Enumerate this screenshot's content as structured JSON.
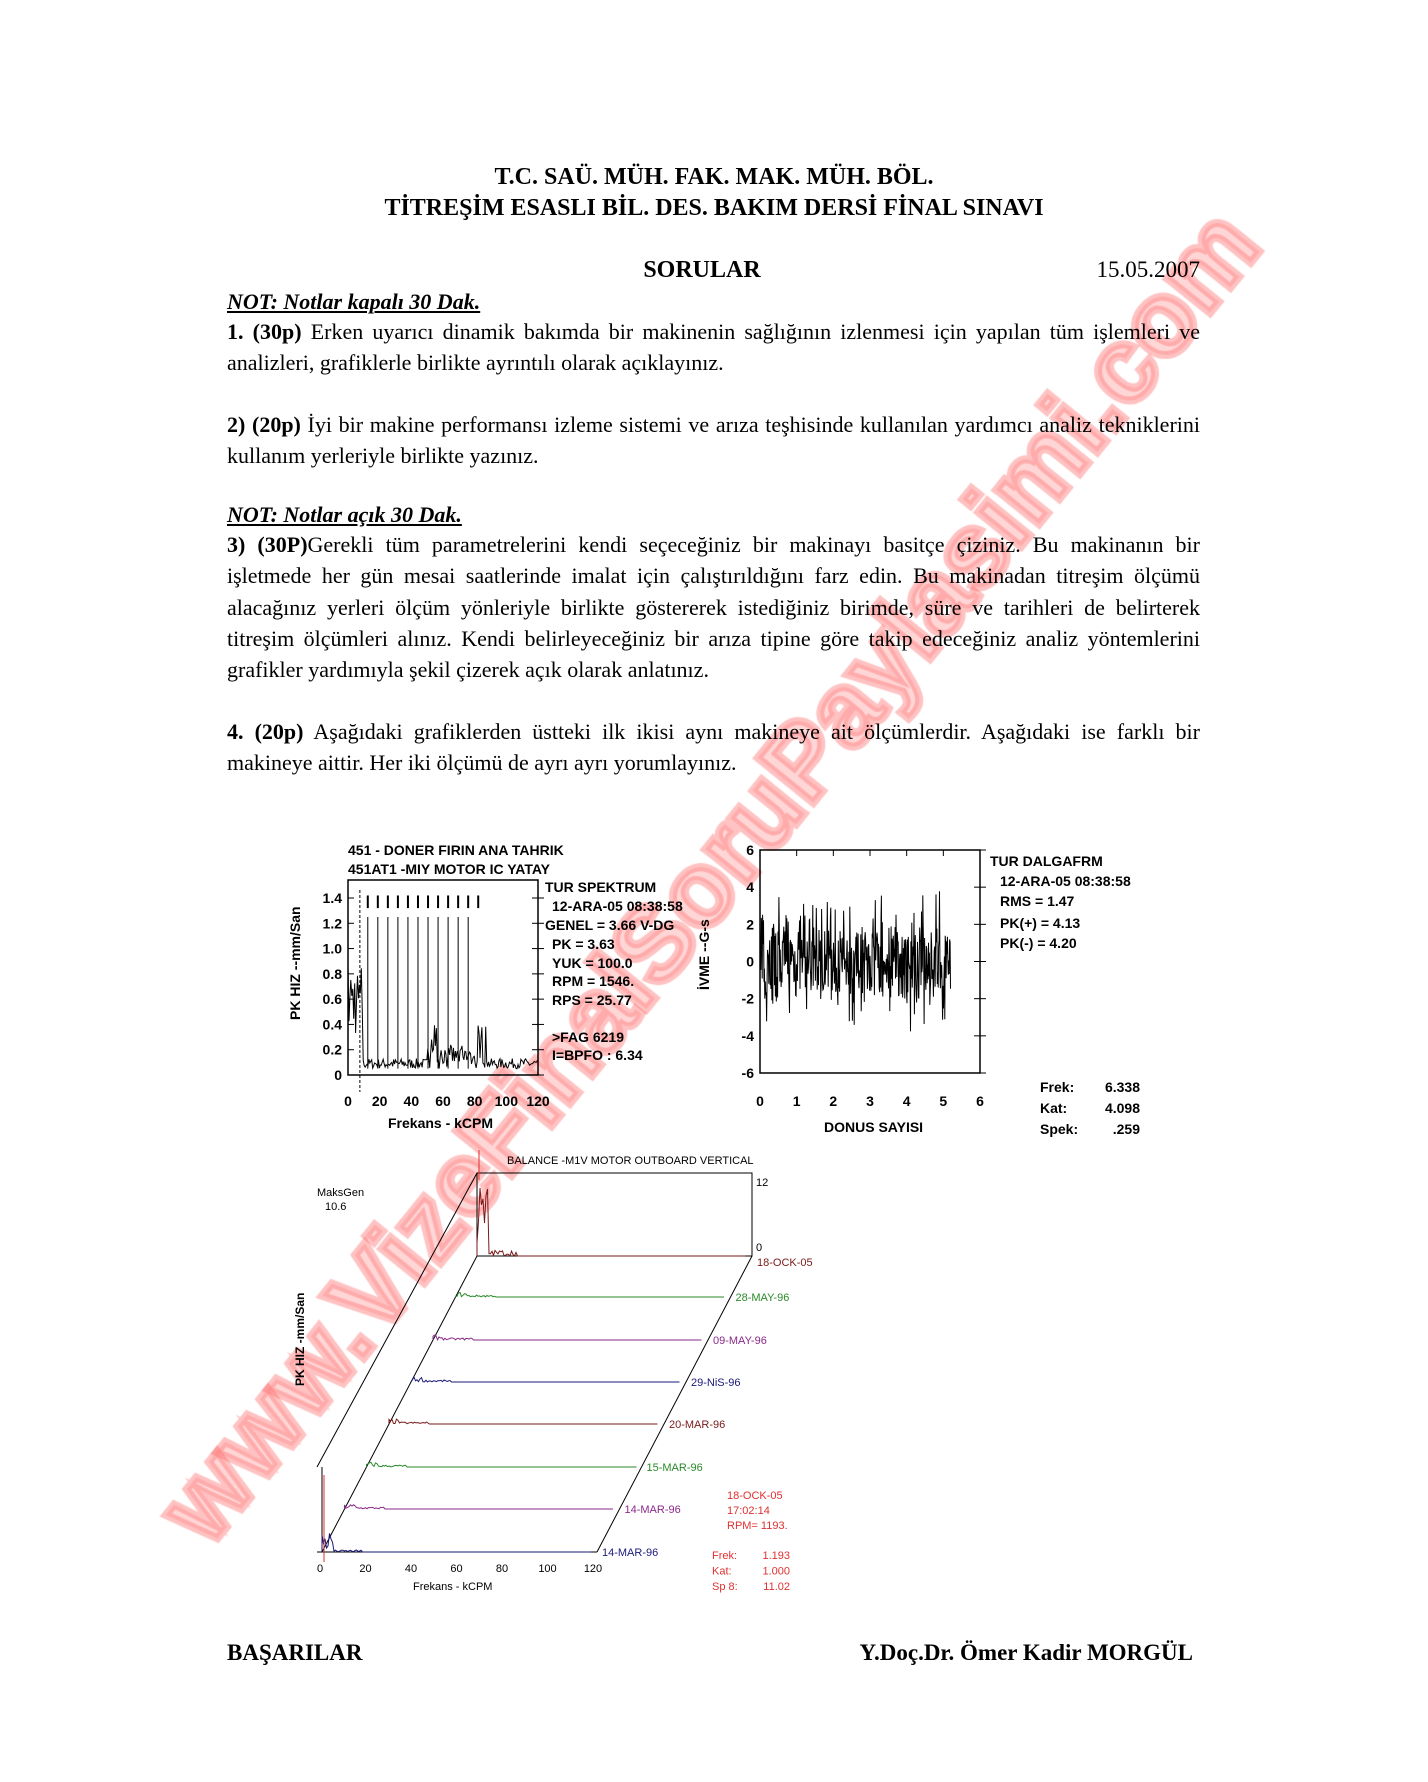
{
  "header": {
    "line1": "T.C. SAÜ. MÜH. FAK. MAK. MÜH. BÖL.",
    "line2": "TİTREŞİM ESASLI BİL. DES. BAKIM DERSİ FİNAL SINAVI",
    "section": "SORULAR",
    "date": "15.05.2007"
  },
  "notes": {
    "closed": "NOT: Notlar kapalı 30 Dak.",
    "open": "NOT: Notlar açık 30 Dak."
  },
  "questions": [
    {
      "num": "1. (30p)",
      "text": " Erken uyarıcı dinamik bakımda bir makinenin sağlığının izlenmesi için yapılan tüm işlemleri ve analizleri, grafiklerle birlikte ayrıntılı olarak açıklayınız."
    },
    {
      "num": "2) (20p)",
      "text": " İyi bir makine performansı izleme sistemi ve arıza teşhisinde kullanılan yardımcı analiz tekniklerini kullanım yerleriyle birlikte yazınız."
    },
    {
      "num": "3) (30P)",
      "text": "Gerekli tüm parametrelerini kendi seçeceğiniz bir makinayı basitçe çiziniz. Bu makinanın bir işletmede her gün mesai saatlerinde imalat için çalıştırıldığını farz edin. Bu makinadan titreşim ölçümü alacağınız yerleri ölçüm  yönleriyle birlikte göstererek istediğiniz birimde, süre ve tarihleri de belirterek titreşim ölçümleri alınız. Kendi belirleyeceğiniz bir arıza tipine göre takip edeceğiniz analiz yöntemlerini grafikler yardımıyla şekil çizerek açık olarak anlatınız."
    },
    {
      "num": "4. (20p)",
      "text": " Aşağıdaki grafiklerden üstteki ilk ikisi aynı makineye ait ölçümlerdir. Aşağıdaki ise farklı bir makineye aittir. Her iki ölçümü de ayrı ayrı yorumlayınız."
    }
  ],
  "spectrum": {
    "title1": "451  - DONER FIRIN ANA TAHRIK",
    "title2": "451AT1    -MIY   MOTOR IC YATAY",
    "ylabel": "PK  HIZ --mm/San",
    "xlabel": "Frekans -    kCPM",
    "yticks": [
      "0",
      "0.2",
      "0.4",
      "0.6",
      "0.8",
      "1.0",
      "1.2",
      "1.4"
    ],
    "xticks": [
      "0",
      "20",
      "40",
      "60",
      "80",
      "100",
      "120"
    ],
    "info": [
      "TUR        SPEKTRUM",
      "12-ARA-05  08:38:58",
      "GENEL =  3.66 V-DG",
      "PK  =  3.63",
      "YUK = 100.0",
      "RPM =  1546.",
      "RPS =  25.77",
      ">FAG 6219",
      "I=BPFO     :  6.34"
    ]
  },
  "waveform": {
    "ylabel": "İVME --G-s",
    "xlabel": "DONUS SAYISI",
    "yticks": [
      "6",
      "4",
      "2",
      "0",
      "-2",
      "-4",
      "-6"
    ],
    "xticks": [
      "0",
      "1",
      "2",
      "3",
      "4",
      "5",
      "6"
    ],
    "info": [
      "TUR        DALGAFRM",
      "12-ARA-05  08:38:58",
      "RMS =  1.47",
      "PK(+) = 4.13",
      "PK(-) = 4.20"
    ],
    "stats": [
      {
        "k": "Frek:",
        "v": "6.338"
      },
      {
        "k": "Kat:",
        "v": "4.098"
      },
      {
        "k": "Spek:",
        "v": ".259"
      }
    ]
  },
  "waterfall": {
    "title": "BALANCE    -M1V   MOTOR OUTBOARD VERTICAL",
    "maks_label": "MaksGen",
    "maks_value": "10.6",
    "ylabel": "PK  HIZ -mm/San",
    "ytop": "12",
    "ybottom": "0",
    "xlabel": "Frekans -    kCPM",
    "xticks": [
      "0",
      "20",
      "40",
      "60",
      "80",
      "100",
      "120"
    ],
    "traces": [
      {
        "date": "14-MAR-96",
        "color": "#1a1a7a"
      },
      {
        "date": "14-MAR-96",
        "color": "#8a2a8a"
      },
      {
        "date": "15-MAR-96",
        "color": "#2a8a2a"
      },
      {
        "date": "20-MAR-96",
        "color": "#7a1a1a"
      },
      {
        "date": "29-NiS-96",
        "color": "#1a1a7a"
      },
      {
        "date": "09-MAY-96",
        "color": "#8a2a8a"
      },
      {
        "date": "28-MAY-96",
        "color": "#2a8a2a"
      },
      {
        "date": "18-OCK-05",
        "color": "#7a1a1a"
      }
    ],
    "info": [
      "18-OCK-05",
      "17:02:14",
      "RPM= 1193."
    ],
    "stats": [
      {
        "k": "Frek:",
        "v": "1.193"
      },
      {
        "k": "Kat:",
        "v": "1.000"
      },
      {
        "k": "Sp 8:",
        "v": "11.02"
      }
    ],
    "accent": "#e03030"
  },
  "footer": {
    "left": "BAŞARILAR",
    "right": "Y.Doç.Dr. Ömer Kadir MORGÜL"
  },
  "watermark": "www.VizeFinalSoruPaylasimi.com"
}
